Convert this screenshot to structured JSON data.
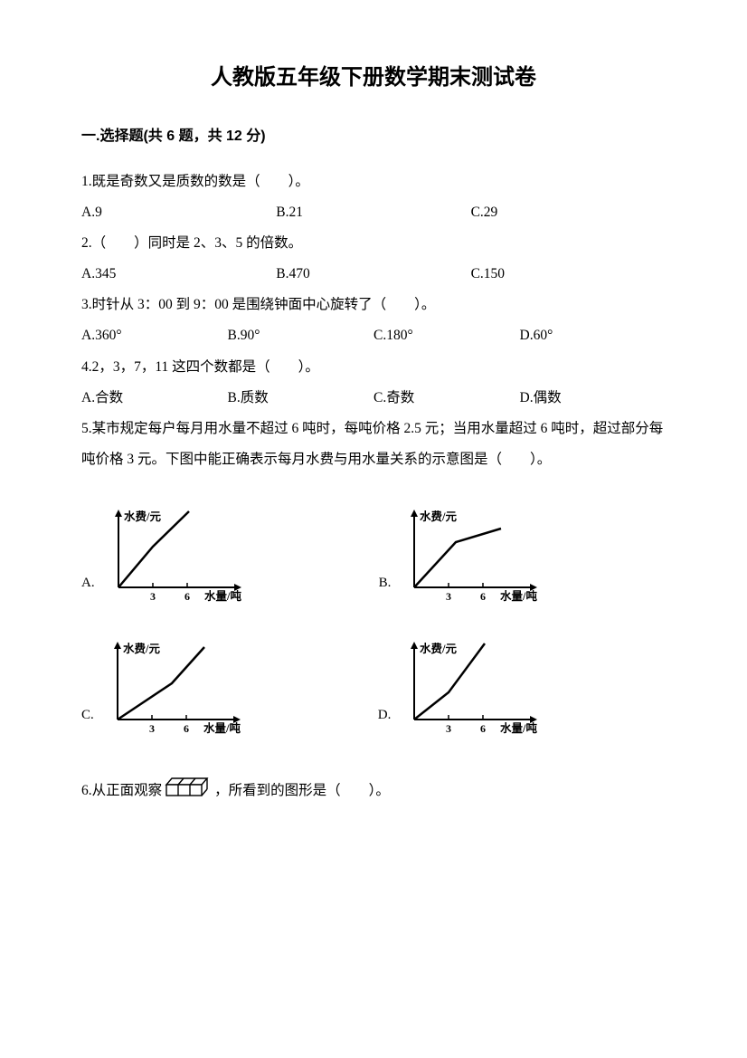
{
  "title": "人教版五年级下册数学期末测试卷",
  "section1": {
    "header": "一.选择题(共 6 题，共 12 分)"
  },
  "q1": {
    "text": "1.既是奇数又是质数的数是（　　）。",
    "a": "A.9",
    "b": "B.21",
    "c": "C.29"
  },
  "q2": {
    "text": "2.（　　）同时是 2、3、5 的倍数。",
    "a": "A.345",
    "b": "B.470",
    "c": "C.150"
  },
  "q3": {
    "text": "3.时针从 3：00 到 9：00 是围绕钟面中心旋转了（　　）。",
    "a": "A.360°",
    "b": "B.90°",
    "c": "C.180°",
    "d": "D.60°"
  },
  "q4": {
    "text": "4.2，3，7，11 这四个数都是（　　）。",
    "a": "A.合数",
    "b": "B.质数",
    "c": "C.奇数",
    "d": "D.偶数"
  },
  "q5": {
    "text": "5.某市规定每户每月用水量不超过 6 吨时，每吨价格 2.5 元；当用水量超过 6 吨时，超过部分每吨价格 3 元。下图中能正确表示每月水费与用水量关系的示意图是（　　）。"
  },
  "chart": {
    "ylabel": "水费/元",
    "xlabel": "水量/吨",
    "ticks": [
      "3",
      "6"
    ],
    "stroke": "#000000",
    "width": 170,
    "height": 110,
    "axis_origin": {
      "x": 22,
      "y": 88
    },
    "a": {
      "label": "A.",
      "segments": [
        [
          22,
          88
        ],
        [
          60,
          43
        ],
        [
          100,
          4
        ]
      ]
    },
    "b": {
      "label": "B.",
      "segments": [
        [
          22,
          88
        ],
        [
          68,
          38
        ],
        [
          118,
          23
        ]
      ]
    },
    "c": {
      "label": "C.",
      "segments": [
        [
          22,
          88
        ],
        [
          82,
          48
        ],
        [
          118,
          8
        ]
      ]
    },
    "d": {
      "label": "D.",
      "segments": [
        [
          22,
          88
        ],
        [
          60,
          58
        ],
        [
          100,
          4
        ]
      ]
    }
  },
  "q6": {
    "pre": "6.从正面观察",
    "post": "，所看到的图形是（　　）。"
  }
}
